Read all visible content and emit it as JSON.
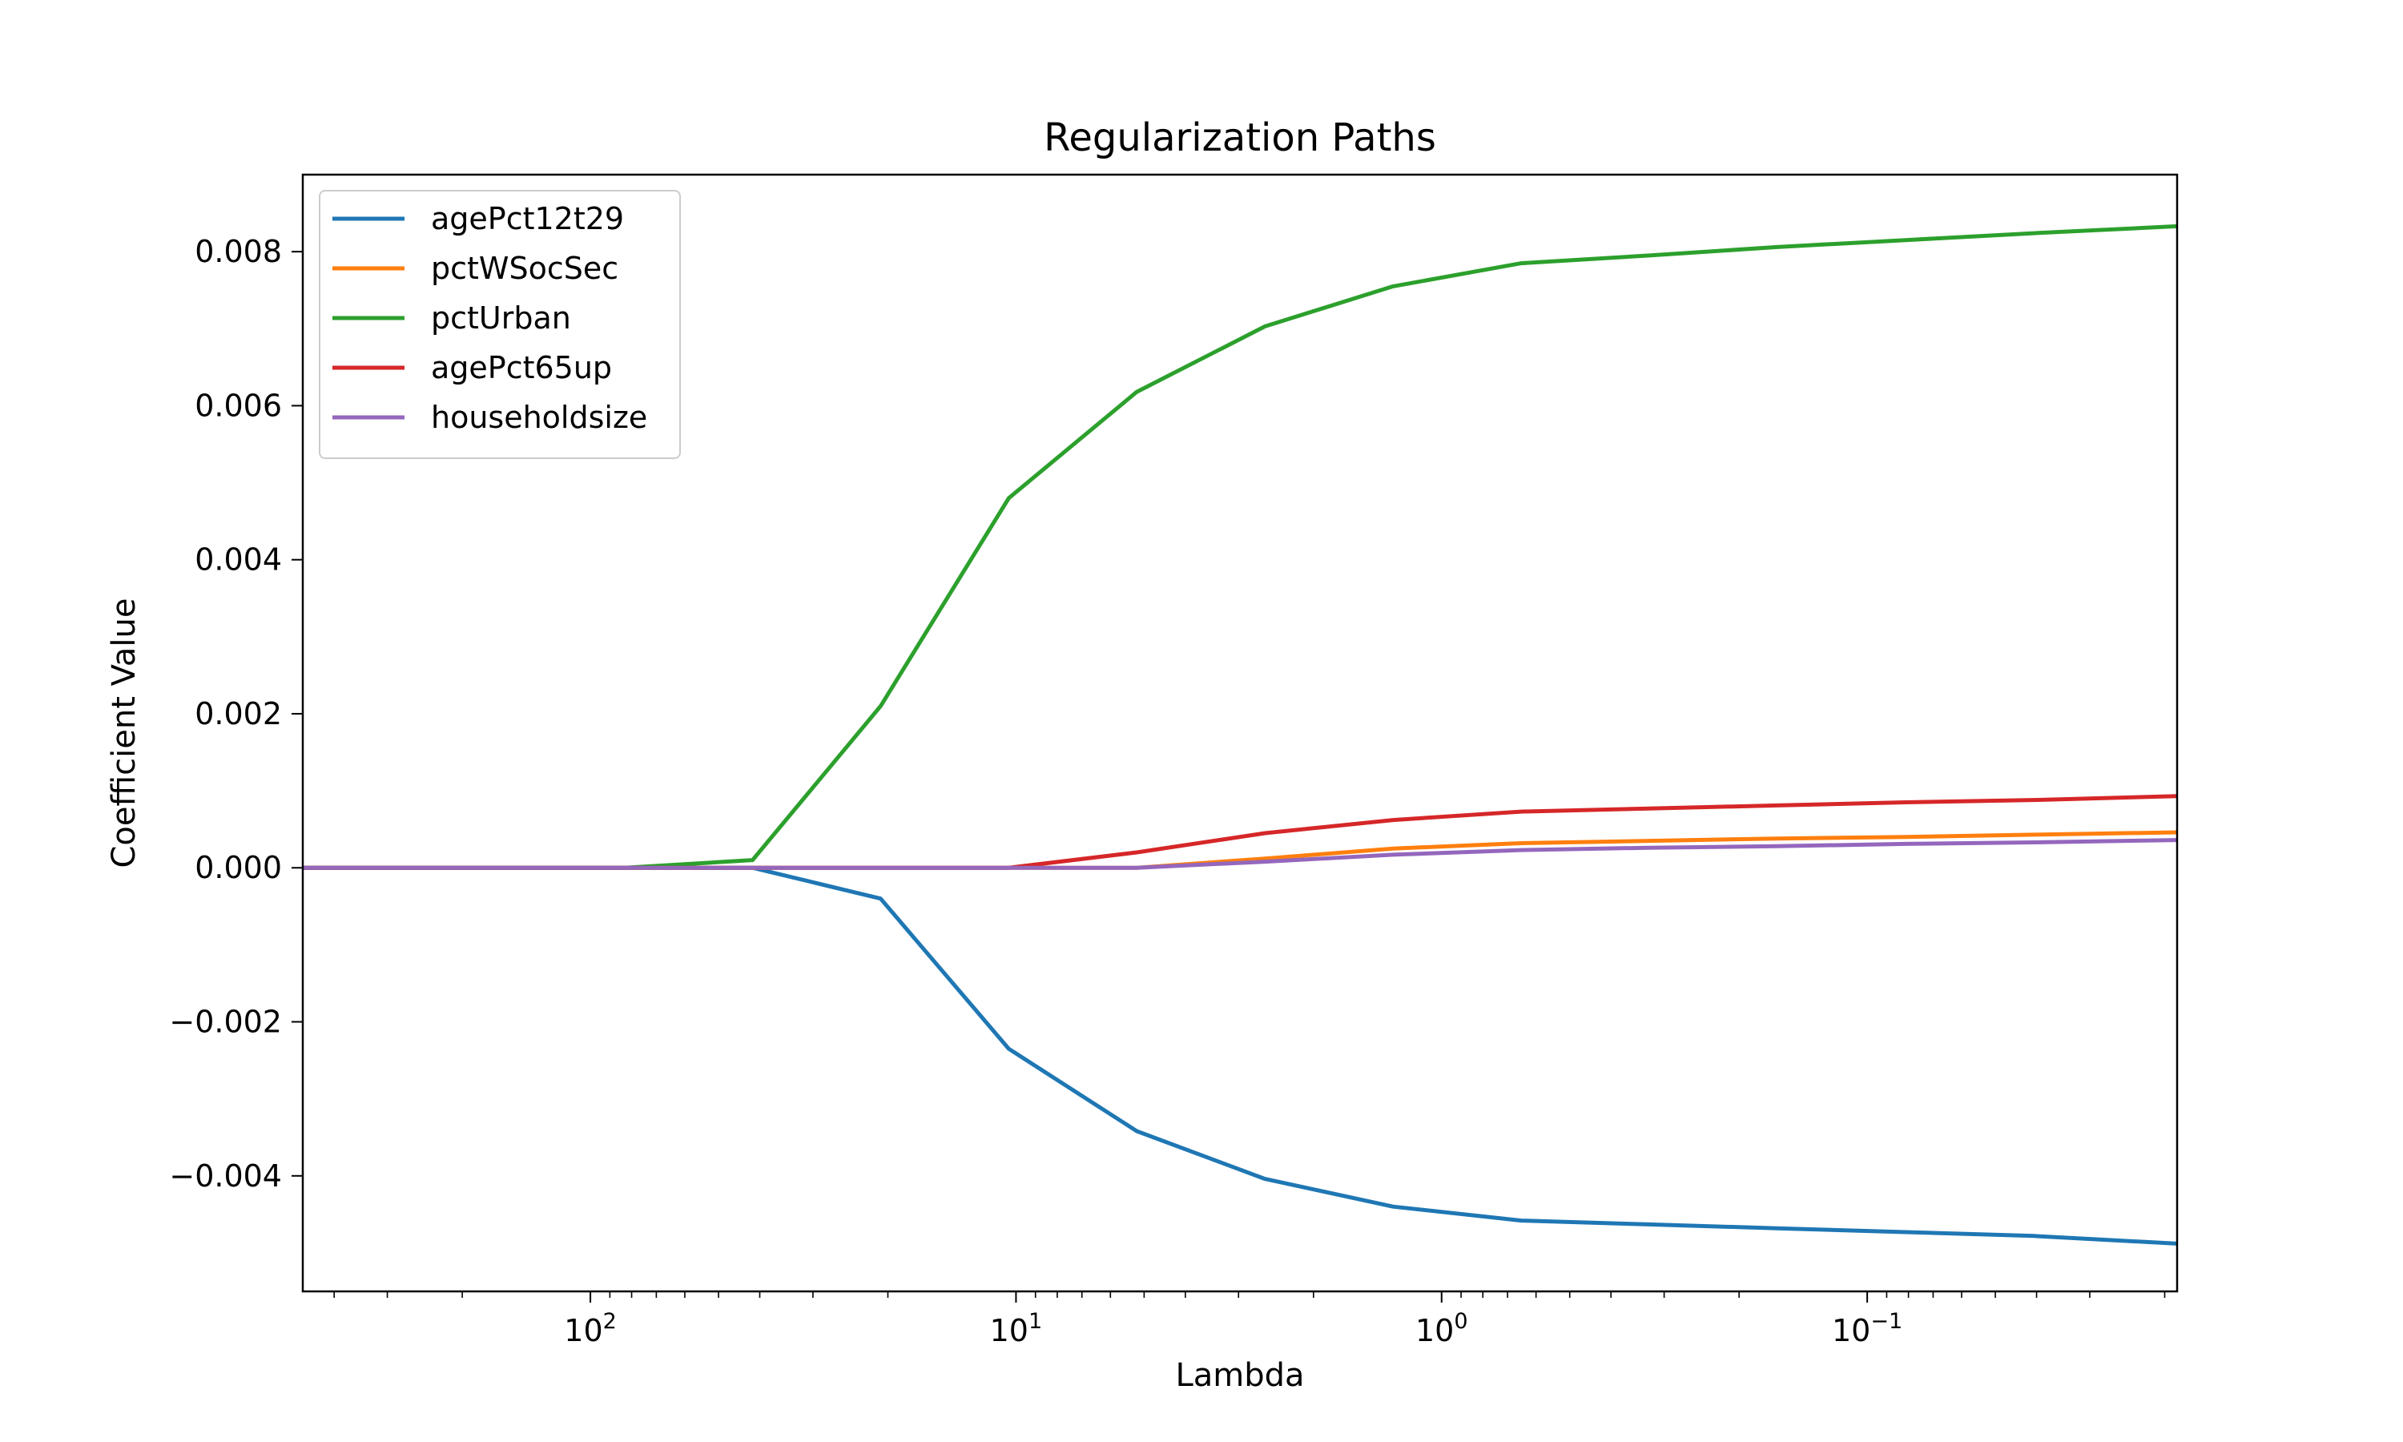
{
  "chart_data": {
    "type": "line",
    "title": "Regularization Paths",
    "xlabel": "Lambda",
    "ylabel": "Coefficient Value",
    "x_scale": "log",
    "x_reversed": true,
    "xlim": [
      474,
      0.0187
    ],
    "ylim": [
      -0.0055,
      0.009
    ],
    "x": [
      474,
      332,
      166,
      83.2,
      41.6,
      20.8,
      10.4,
      5.2,
      2.6,
      1.3,
      0.65,
      0.325,
      0.163,
      0.0813,
      0.0406,
      0.0187
    ],
    "x_ticks": [
      {
        "value": 100,
        "base": "10",
        "exp": "2"
      },
      {
        "value": 10,
        "base": "10",
        "exp": "1"
      },
      {
        "value": 1,
        "base": "10",
        "exp": "0"
      },
      {
        "value": 0.1,
        "base": "10",
        "exp": "−1"
      }
    ],
    "y_ticks": [
      {
        "value": 0.008,
        "label": "0.008"
      },
      {
        "value": 0.006,
        "label": "0.006"
      },
      {
        "value": 0.004,
        "label": "0.004"
      },
      {
        "value": 0.002,
        "label": "0.002"
      },
      {
        "value": 0.0,
        "label": "0.000"
      },
      {
        "value": -0.002,
        "label": "−0.002"
      },
      {
        "value": -0.004,
        "label": "−0.004"
      }
    ],
    "grid": false,
    "legend_position": "top-left",
    "series": [
      {
        "name": "agePct12t29",
        "color": "#1f77b4",
        "values": [
          0,
          0,
          0,
          0,
          0,
          -0.0004,
          -0.00235,
          -0.00342,
          -0.00404,
          -0.0044,
          -0.00458,
          -0.00463,
          -0.00468,
          -0.00473,
          -0.00478,
          -0.00488
        ]
      },
      {
        "name": "pctWSocSec",
        "color": "#ff7f0e",
        "values": [
          0,
          0,
          0,
          0,
          0,
          0,
          0,
          0,
          0.00012,
          0.00025,
          0.00032,
          0.00035,
          0.00038,
          0.0004,
          0.00043,
          0.00046
        ]
      },
      {
        "name": "pctUrban",
        "color": "#2ca02c",
        "values": [
          0,
          0,
          0,
          0,
          0.0001,
          0.0021,
          0.0048,
          0.00618,
          0.00703,
          0.00755,
          0.00785,
          0.00795,
          0.00806,
          0.00815,
          0.00824,
          0.00833
        ]
      },
      {
        "name": "agePct65up",
        "color": "#d62728",
        "values": [
          0,
          0,
          0,
          0,
          0,
          0,
          0,
          0.0002,
          0.00045,
          0.00062,
          0.00073,
          0.00077,
          0.00081,
          0.00085,
          0.00088,
          0.00093
        ]
      },
      {
        "name": "householdsize",
        "color": "#9467bd",
        "values": [
          0,
          0,
          0,
          0,
          0,
          0,
          0,
          0,
          8e-05,
          0.00017,
          0.00023,
          0.00026,
          0.00028,
          0.00031,
          0.00033,
          0.00036
        ]
      }
    ]
  }
}
